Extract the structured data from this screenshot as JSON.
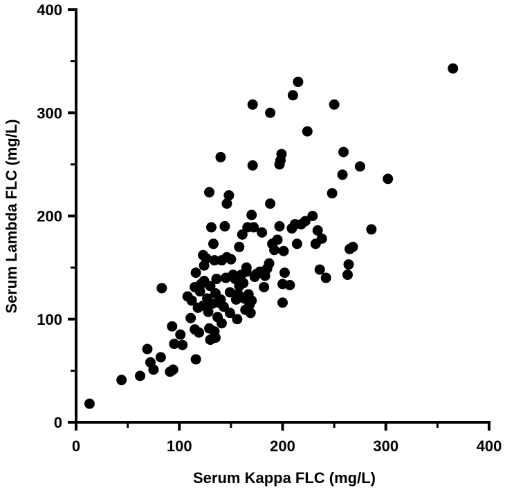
{
  "chart_data": {
    "type": "scatter",
    "title": "",
    "xlabel": "Serum Kappa FLC (mg/L)",
    "ylabel": "Serum Lambda FLC (mg/L)",
    "xlim": [
      0,
      400
    ],
    "ylim": [
      0,
      400
    ],
    "xticks": [
      "0",
      "100",
      "200",
      "300",
      "400"
    ],
    "yticks": [
      "0",
      "100",
      "200",
      "300",
      "400"
    ],
    "grid": false,
    "marker_color": "#000000",
    "series": [
      {
        "points": [
          [
            13,
            18
          ],
          [
            44,
            41
          ],
          [
            62,
            45
          ],
          [
            69,
            71
          ],
          [
            72,
            58
          ],
          [
            75,
            51
          ],
          [
            82,
            63
          ],
          [
            83,
            130
          ],
          [
            91,
            49
          ],
          [
            93,
            93
          ],
          [
            94,
            51
          ],
          [
            95,
            76
          ],
          [
            101,
            85
          ],
          [
            103,
            75
          ],
          [
            108,
            122
          ],
          [
            111,
            101
          ],
          [
            112,
            118
          ],
          [
            115,
            90
          ],
          [
            115,
            131
          ],
          [
            116,
            145
          ],
          [
            116,
            61
          ],
          [
            118,
            111
          ],
          [
            119,
            87
          ],
          [
            120,
            127
          ],
          [
            121,
            134
          ],
          [
            123,
            113
          ],
          [
            123,
            162
          ],
          [
            124,
            137
          ],
          [
            124,
            152
          ],
          [
            126,
            159
          ],
          [
            127,
            120
          ],
          [
            128,
            107
          ],
          [
            129,
            91
          ],
          [
            129,
            223
          ],
          [
            130,
            132
          ],
          [
            130,
            80
          ],
          [
            131,
            189
          ],
          [
            132,
            115
          ],
          [
            133,
            173
          ],
          [
            134,
            88
          ],
          [
            134,
            157
          ],
          [
            135,
            82
          ],
          [
            135,
            125
          ],
          [
            136,
            139
          ],
          [
            137,
            102
          ],
          [
            138,
            116
          ],
          [
            140,
            257
          ],
          [
            140,
            119
          ],
          [
            141,
            96
          ],
          [
            141,
            157
          ],
          [
            143,
            112
          ],
          [
            144,
            190
          ],
          [
            145,
            140
          ],
          [
            146,
            212
          ],
          [
            146,
            160
          ],
          [
            148,
            220
          ],
          [
            149,
            106
          ],
          [
            149,
            126
          ],
          [
            150,
            158
          ],
          [
            152,
            143
          ],
          [
            154,
            139
          ],
          [
            155,
            119
          ],
          [
            156,
            100
          ],
          [
            157,
            124
          ],
          [
            158,
            132
          ],
          [
            158,
            170
          ],
          [
            160,
            143
          ],
          [
            161,
            182
          ],
          [
            162,
            135
          ],
          [
            163,
            120
          ],
          [
            164,
            109
          ],
          [
            165,
            150
          ],
          [
            165,
            146
          ],
          [
            166,
            189
          ],
          [
            167,
            124
          ],
          [
            168,
            114
          ],
          [
            169,
            106
          ],
          [
            170,
            201
          ],
          [
            170,
            118
          ],
          [
            171,
            249
          ],
          [
            171,
            308
          ],
          [
            172,
            189
          ],
          [
            173,
            141
          ],
          [
            175,
            144
          ],
          [
            178,
            146
          ],
          [
            180,
            184
          ],
          [
            182,
            131
          ],
          [
            183,
            142
          ],
          [
            185,
            149
          ],
          [
            187,
            154
          ],
          [
            188,
            212
          ],
          [
            188,
            300
          ],
          [
            190,
            173
          ],
          [
            192,
            167
          ],
          [
            195,
            177
          ],
          [
            197,
            190
          ],
          [
            197,
            250
          ],
          [
            198,
            254
          ],
          [
            199,
            260
          ],
          [
            200,
            116
          ],
          [
            200,
            134
          ],
          [
            201,
            166
          ],
          [
            202,
            145
          ],
          [
            207,
            133
          ],
          [
            209,
            188
          ],
          [
            210,
            317
          ],
          [
            212,
            192
          ],
          [
            214,
            173
          ],
          [
            215,
            330
          ],
          [
            218,
            192
          ],
          [
            222,
            195
          ],
          [
            224,
            282
          ],
          [
            229,
            200
          ],
          [
            232,
            173
          ],
          [
            234,
            186
          ],
          [
            236,
            148
          ],
          [
            238,
            178
          ],
          [
            242,
            140
          ],
          [
            248,
            222
          ],
          [
            250,
            308
          ],
          [
            258,
            240
          ],
          [
            259,
            262
          ],
          [
            263,
            143
          ],
          [
            264,
            153
          ],
          [
            265,
            168
          ],
          [
            268,
            170
          ],
          [
            275,
            248
          ],
          [
            286,
            187
          ],
          [
            302,
            236
          ],
          [
            365,
            343
          ]
        ]
      }
    ]
  }
}
